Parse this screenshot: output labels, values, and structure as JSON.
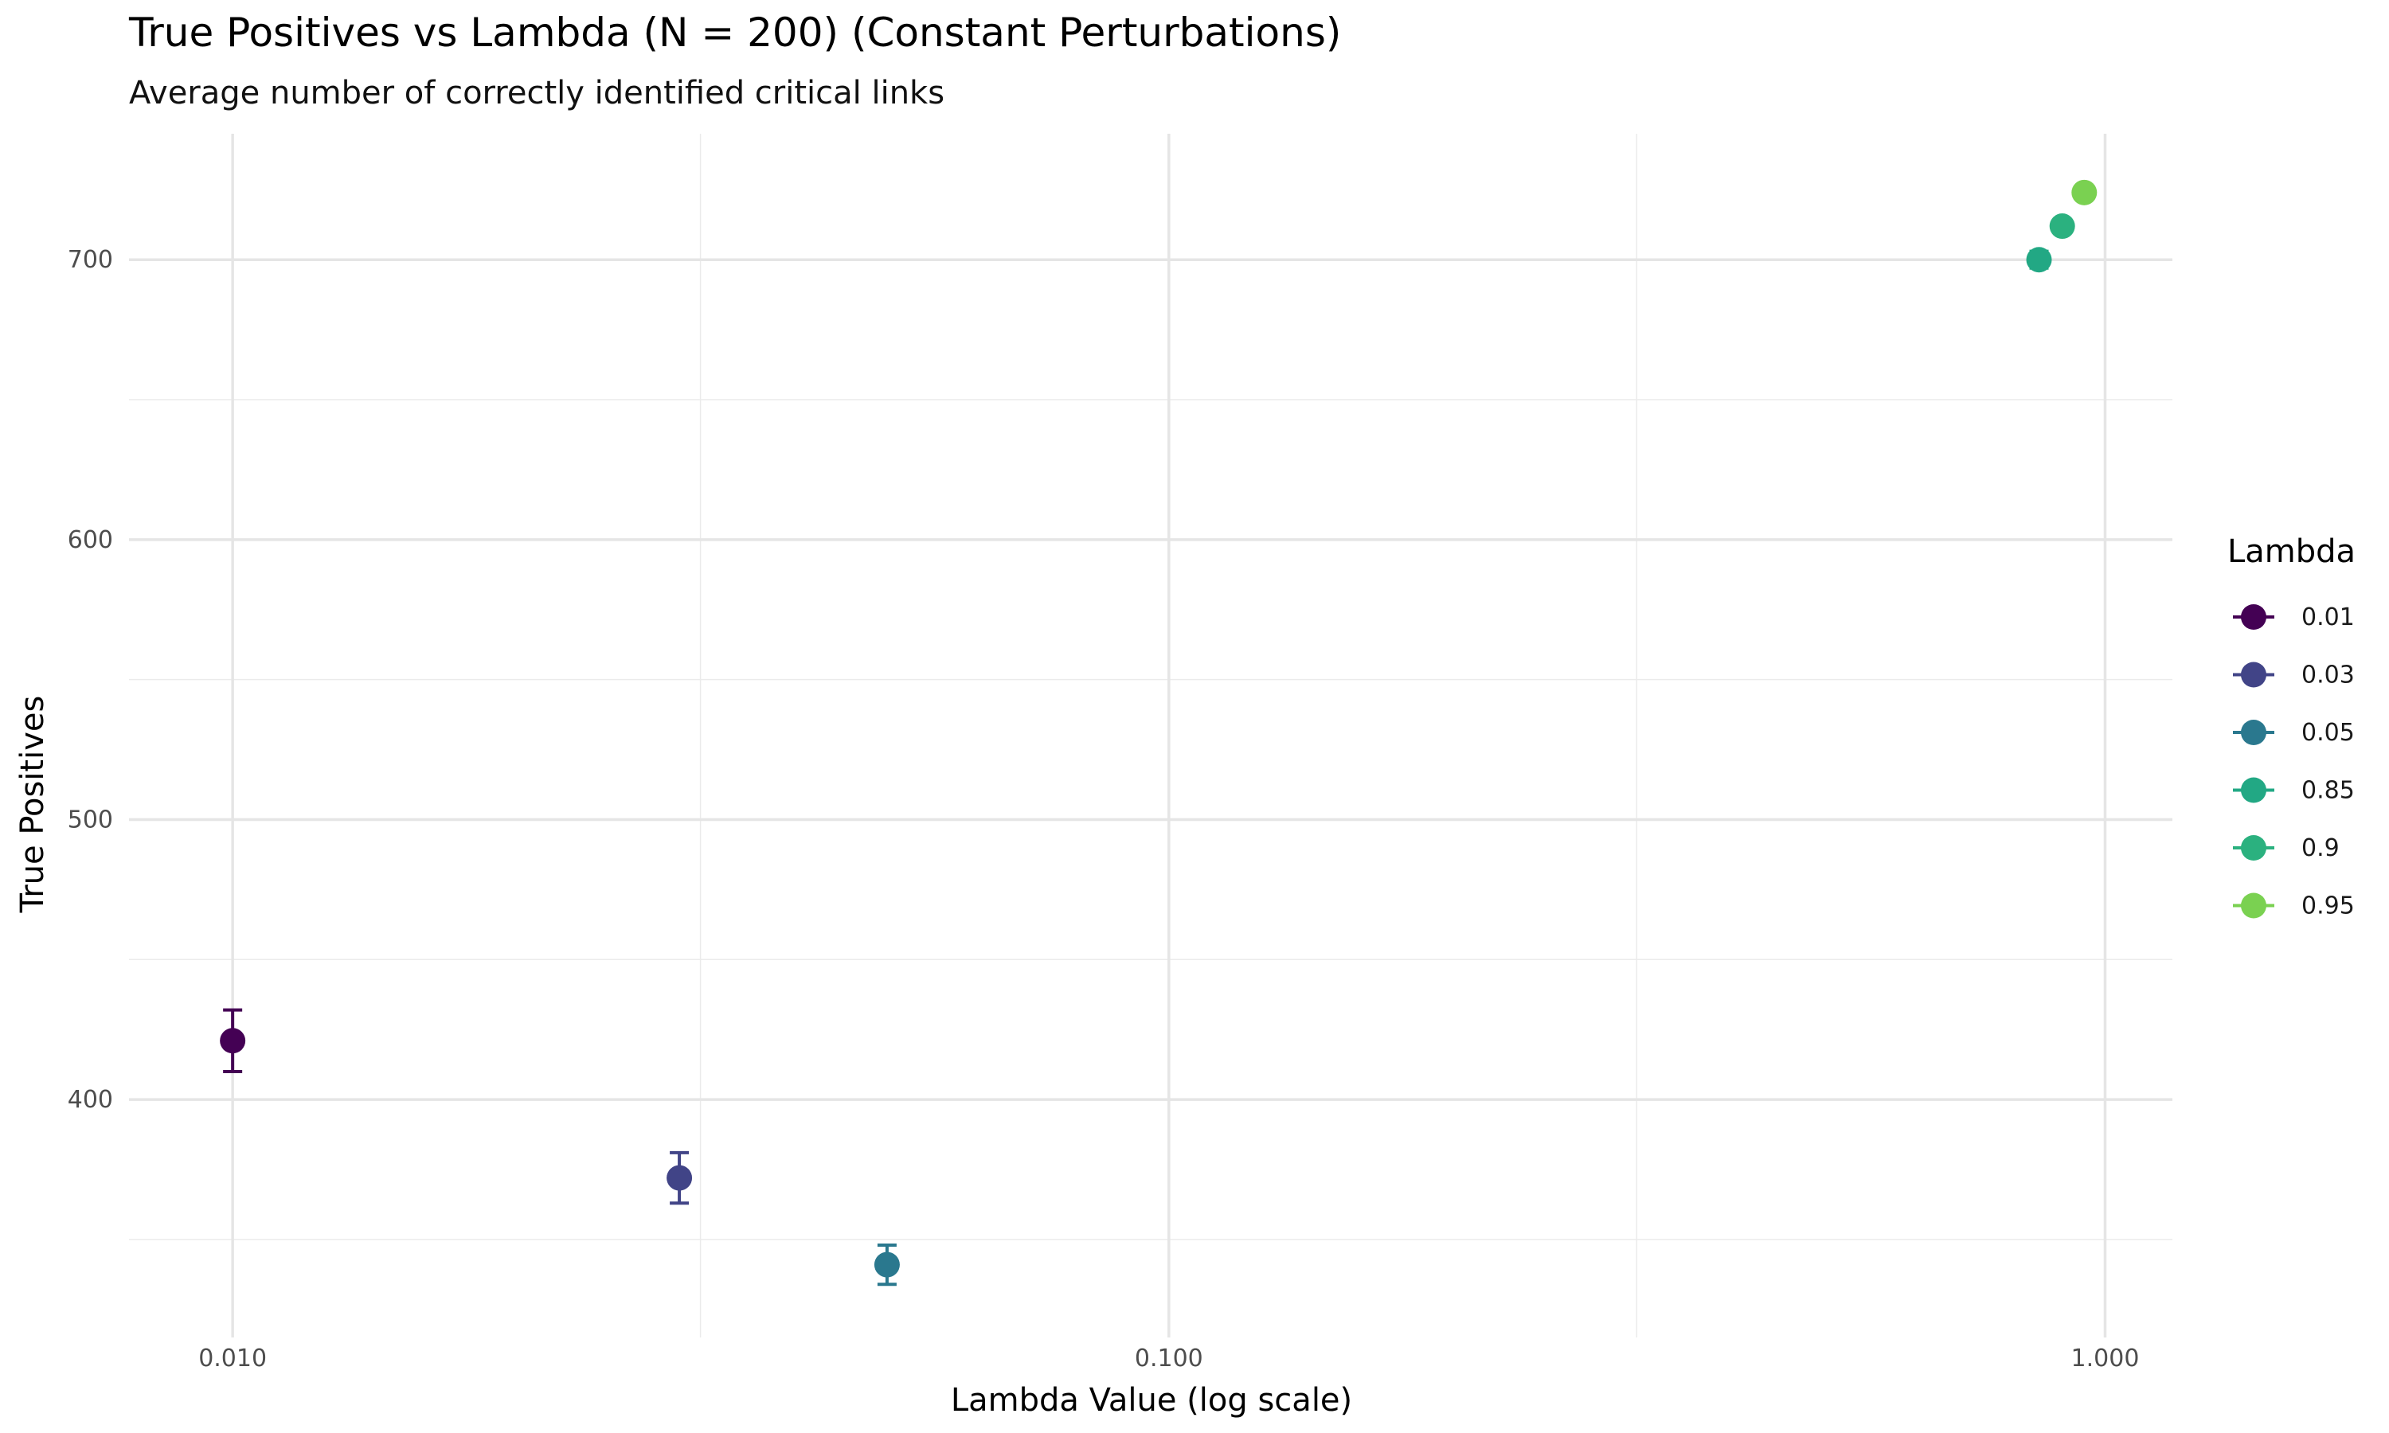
{
  "chart_data": {
    "type": "scatter",
    "title": "True Positives vs Lambda (N = 200) (Constant Perturbations)",
    "subtitle": "Average number of correctly identified critical links",
    "xlabel": "Lambda Value (log scale)",
    "ylabel": "True Positives",
    "x_scale": "log10",
    "xlim": [
      0.00775,
      1.18
    ],
    "ylim": [
      315,
      745
    ],
    "x_ticks": [
      {
        "value": 0.01,
        "label": "0.010"
      },
      {
        "value": 0.1,
        "label": "0.100"
      },
      {
        "value": 1.0,
        "label": "1.000"
      }
    ],
    "x_minor_ticks": [
      0.0316,
      0.316
    ],
    "y_ticks": [
      {
        "value": 400,
        "label": "400"
      },
      {
        "value": 500,
        "label": "500"
      },
      {
        "value": 600,
        "label": "600"
      },
      {
        "value": 700,
        "label": "700"
      }
    ],
    "y_minor_ticks": [
      350,
      450,
      550,
      650
    ],
    "grid": true,
    "legend": {
      "title": "Lambda",
      "position": "right"
    },
    "series": [
      {
        "name": "0.01",
        "x": 0.01,
        "y": 421,
        "ymin": 410,
        "ymax": 432,
        "color": "#440154"
      },
      {
        "name": "0.03",
        "x": 0.03,
        "y": 372,
        "ymin": 363,
        "ymax": 381,
        "color": "#414487"
      },
      {
        "name": "0.05",
        "x": 0.05,
        "y": 341,
        "ymin": 334,
        "ymax": 348,
        "color": "#2A788E"
      },
      {
        "name": "0.85",
        "x": 0.85,
        "y": 700,
        "ymin": 697,
        "ymax": 703,
        "color": "#22A884"
      },
      {
        "name": "0.9",
        "x": 0.9,
        "y": 712,
        "ymin": 712,
        "ymax": 712,
        "color": "#2BB17F"
      },
      {
        "name": "0.95",
        "x": 0.95,
        "y": 724,
        "ymin": 724,
        "ymax": 724,
        "color": "#7AD151"
      }
    ]
  }
}
